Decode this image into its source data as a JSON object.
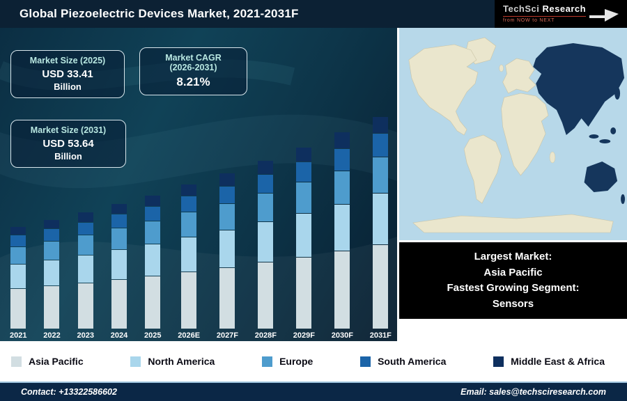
{
  "header": {
    "title": "Global Piezoelectric Devices Market, 2021-2031F",
    "logo": {
      "brand_1": "TechSci",
      "brand_2": "Research",
      "tagline": "from NOW to NEXT"
    }
  },
  "info_boxes": [
    {
      "title": "Market Size (2025)",
      "value": "USD 33.41",
      "unit": "Billion"
    },
    {
      "title": "Market CAGR",
      "subtitle": "(2026-2031)",
      "value": "8.21%"
    },
    {
      "title": "Market Size (2031)",
      "value": "USD 53.64",
      "unit": "Billion"
    }
  ],
  "highlight_box": {
    "lines": [
      "Largest Market:",
      "Asia Pacific",
      "Fastest Growing Segment:",
      "Sensors"
    ]
  },
  "footer": {
    "contact": "Contact: +13322586602",
    "email": "Email: sales@techsciresearch.com"
  },
  "chart_data": {
    "type": "bar",
    "stacked": true,
    "title": "Global Piezoelectric Devices Market, 2021-2031F",
    "unit": "USD Billion",
    "categories": [
      "2021",
      "2022",
      "2023",
      "2024",
      "2025",
      "2026E",
      "2027F",
      "2028F",
      "2029F",
      "2030F",
      "2031F"
    ],
    "series": [
      {
        "name": "Asia Pacific",
        "color": "#d2dee2",
        "values": [
          10.2,
          10.9,
          11.6,
          12.5,
          13.4,
          14.5,
          15.6,
          16.9,
          18.3,
          19.8,
          21.5
        ]
      },
      {
        "name": "North America",
        "color": "#a9d6ec",
        "values": [
          6.1,
          6.5,
          7.0,
          7.5,
          8.0,
          8.7,
          9.4,
          10.2,
          11.0,
          11.9,
          12.9
        ]
      },
      {
        "name": "Europe",
        "color": "#4e9ccd",
        "values": [
          4.3,
          4.6,
          4.9,
          5.3,
          5.7,
          6.2,
          6.6,
          7.2,
          7.8,
          8.4,
          9.1
        ]
      },
      {
        "name": "South America",
        "color": "#1b64a8",
        "values": [
          2.8,
          3.0,
          3.2,
          3.4,
          3.7,
          4.0,
          4.3,
          4.7,
          5.0,
          5.5,
          5.9
        ]
      },
      {
        "name": "Middle East & Africa",
        "color": "#0e2f5e",
        "values": [
          2.0,
          2.2,
          2.4,
          2.5,
          2.6,
          2.8,
          3.2,
          3.3,
          3.7,
          4.0,
          4.2
        ]
      }
    ],
    "ylim": [
      0,
      60
    ],
    "legend_position": "bottom",
    "grid": false,
    "annotations": {
      "market_size_2025_usd_billion": 33.41,
      "market_size_2031_usd_billion": 53.64,
      "cagr_2026_2031_percent": 8.21
    }
  }
}
